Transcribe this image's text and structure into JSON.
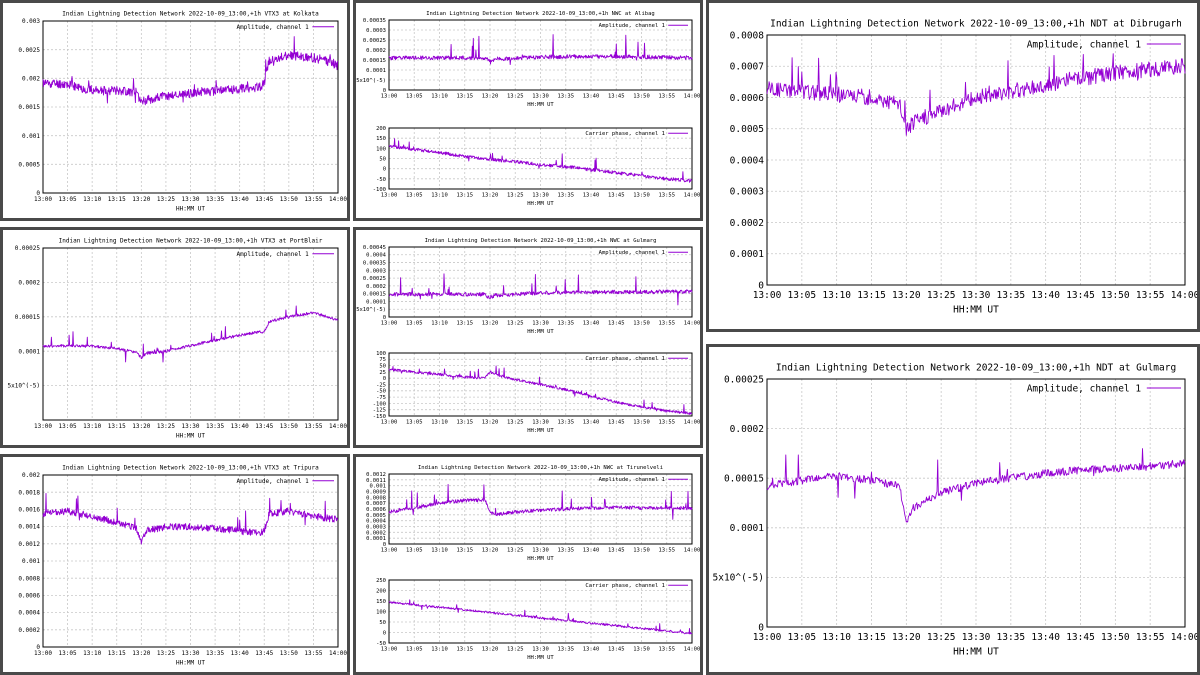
{
  "chart_data": [
    {
      "id": "p1",
      "type": "line",
      "title": "Indian Lightning Detection Network 2022-10-09_13:00,+1h VTX3 at Kolkata",
      "xlabel": "HH:MM UT",
      "xticks": [
        "13:00",
        "13:05",
        "13:10",
        "13:15",
        "13:20",
        "13:25",
        "13:30",
        "13:35",
        "13:40",
        "13:45",
        "13:50",
        "13:55",
        "14:00"
      ],
      "ylim": [
        0,
        0.003
      ],
      "yticks": [
        {
          "v": 0,
          "l": "0"
        },
        {
          "v": 0.0005,
          "l": "0.0005"
        },
        {
          "v": 0.001,
          "l": "0.001"
        },
        {
          "v": 0.0015,
          "l": "0.0015"
        },
        {
          "v": 0.002,
          "l": "0.002"
        },
        {
          "v": 0.0025,
          "l": "0.0025"
        },
        {
          "v": 0.003,
          "l": "0.003"
        }
      ],
      "legend": "Amplitude, channel 1",
      "noise": 8e-05,
      "spikes": 0.0003,
      "seed": 11,
      "series": [
        {
          "name": "Amplitude, channel 1",
          "x": [
            0,
            5,
            8,
            12,
            15,
            19,
            20,
            21,
            24,
            28,
            32,
            35,
            40,
            44,
            45,
            46,
            50,
            55,
            58,
            60
          ],
          "y": [
            0.00192,
            0.0019,
            0.00182,
            0.00178,
            0.0018,
            0.00175,
            0.0016,
            0.00162,
            0.00168,
            0.00172,
            0.00176,
            0.00178,
            0.00182,
            0.00185,
            0.0019,
            0.00232,
            0.0024,
            0.00236,
            0.0023,
            0.00222
          ]
        }
      ]
    },
    {
      "id": "p2",
      "type": "line",
      "title": "Indian Lightning Detection Network 2022-10-09_13:00,+1h NWC at Alibag",
      "xlabel": "HH:MM UT",
      "xticks": [
        "13:00",
        "13:05",
        "13:10",
        "13:15",
        "13:20",
        "13:25",
        "13:30",
        "13:35",
        "13:40",
        "13:45",
        "13:50",
        "13:55",
        "14:00"
      ],
      "ylim": [
        0,
        0.00035
      ],
      "yticks": [
        {
          "v": 0,
          "l": "0"
        },
        {
          "v": 5e-05,
          "l": "5x10^(-5)"
        },
        {
          "v": 0.0001,
          "l": "0.0001"
        },
        {
          "v": 0.00015,
          "l": "0.00015"
        },
        {
          "v": 0.0002,
          "l": "0.0002"
        },
        {
          "v": 0.00025,
          "l": "0.00025"
        },
        {
          "v": 0.0003,
          "l": "0.0003"
        },
        {
          "v": 0.00035,
          "l": "0.00035"
        }
      ],
      "legend": "Amplitude, channel 1",
      "noise": 1e-05,
      "spikes": 0.00012,
      "seed": 23,
      "series": [
        {
          "name": "Amplitude, channel 1",
          "x": [
            0,
            10,
            19,
            20,
            21,
            30,
            40,
            50,
            60
          ],
          "y": [
            0.00016,
            0.000162,
            0.00016,
            0.000145,
            0.000155,
            0.000165,
            0.000168,
            0.000165,
            0.000162
          ]
        }
      ]
    },
    {
      "id": "p3",
      "type": "line",
      "title": "",
      "xlabel": "HH:MM UT",
      "xticks": [
        "13:00",
        "13:05",
        "13:10",
        "13:15",
        "13:20",
        "13:25",
        "13:30",
        "13:35",
        "13:40",
        "13:45",
        "13:50",
        "13:55",
        "14:00"
      ],
      "ylim": [
        -100,
        200
      ],
      "yticks": [
        {
          "v": -100,
          "l": "-100"
        },
        {
          "v": -50,
          "l": "-50"
        },
        {
          "v": 0,
          "l": "0"
        },
        {
          "v": 50,
          "l": "50"
        },
        {
          "v": 100,
          "l": "100"
        },
        {
          "v": 150,
          "l": "150"
        },
        {
          "v": 200,
          "l": "200"
        }
      ],
      "legend": "Carrier phase, channel 1",
      "noise": 8,
      "spikes": 60,
      "seed": 37,
      "series": [
        {
          "name": "Carrier phase, channel 1",
          "x": [
            0,
            5,
            10,
            15,
            20,
            25,
            30,
            35,
            40,
            45,
            50,
            55,
            60
          ],
          "y": [
            110,
            95,
            80,
            60,
            45,
            35,
            20,
            10,
            -5,
            -20,
            -35,
            -50,
            -60
          ]
        }
      ]
    },
    {
      "id": "p4",
      "type": "line",
      "title": "Indian Lightning Detection Network 2022-10-09_13:00,+1h VTX3 at PortBlair",
      "xlabel": "HH:MM UT",
      "xticks": [
        "13:00",
        "13:05",
        "13:10",
        "13:15",
        "13:20",
        "13:25",
        "13:30",
        "13:35",
        "13:40",
        "13:45",
        "13:50",
        "13:55",
        "14:00"
      ],
      "ylim": [
        0,
        0.00025
      ],
      "yticks": [
        {
          "v": 0,
          "l": ""
        },
        {
          "v": 5e-05,
          "l": "5x10^(-5)"
        },
        {
          "v": 0.0001,
          "l": "0.0001"
        },
        {
          "v": 0.00015,
          "l": "0.00015"
        },
        {
          "v": 0.0002,
          "l": "0.0002"
        },
        {
          "v": 0.00025,
          "l": "0.00025"
        }
      ],
      "legend": "Amplitude, channel 1",
      "noise": 2e-06,
      "spikes": 3e-05,
      "seed": 41,
      "series": [
        {
          "name": "Amplitude, channel 1",
          "x": [
            0,
            5,
            10,
            15,
            19,
            20,
            21,
            25,
            30,
            35,
            40,
            44,
            45,
            46,
            50,
            55,
            60
          ],
          "y": [
            0.000107,
            0.000108,
            0.000107,
            0.000104,
            9.8e-05,
            9e-05,
            9.7e-05,
            0.0001,
            0.000108,
            0.000116,
            0.000123,
            0.000128,
            0.000128,
            0.000143,
            0.00015,
            0.000156,
            0.000145
          ]
        }
      ]
    },
    {
      "id": "p5",
      "type": "line",
      "title": "Indian Lightning Detection Network 2022-10-09_13:00,+1h NWC at Gulmarg",
      "xlabel": "HH:MM UT",
      "xticks": [
        "13:00",
        "13:05",
        "13:10",
        "13:15",
        "13:20",
        "13:25",
        "13:30",
        "13:35",
        "13:40",
        "13:45",
        "13:50",
        "13:55",
        "14:00"
      ],
      "ylim": [
        0,
        0.00045
      ],
      "yticks": [
        {
          "v": 0,
          "l": "0"
        },
        {
          "v": 5e-05,
          "l": "5x10^(-5)"
        },
        {
          "v": 0.0001,
          "l": "0.0001"
        },
        {
          "v": 0.00015,
          "l": "0.00015"
        },
        {
          "v": 0.0002,
          "l": "0.0002"
        },
        {
          "v": 0.00025,
          "l": "0.00025"
        },
        {
          "v": 0.0003,
          "l": "0.0003"
        },
        {
          "v": 0.00035,
          "l": "0.00035"
        },
        {
          "v": 0.0004,
          "l": "0.0004"
        },
        {
          "v": 0.00045,
          "l": "0.00045"
        }
      ],
      "legend": "Amplitude, channel 1",
      "noise": 1.2e-05,
      "spikes": 0.00015,
      "seed": 53,
      "series": [
        {
          "name": "Amplitude, channel 1",
          "x": [
            0,
            10,
            19,
            20,
            21,
            30,
            40,
            50,
            60
          ],
          "y": [
            0.000145,
            0.000147,
            0.000145,
            0.00012,
            0.00014,
            0.000155,
            0.00016,
            0.000162,
            0.000165
          ]
        }
      ]
    },
    {
      "id": "p6",
      "type": "line",
      "title": "",
      "xlabel": "HH:MM UT",
      "xticks": [
        "13:00",
        "13:05",
        "13:10",
        "13:15",
        "13:20",
        "13:25",
        "13:30",
        "13:35",
        "13:40",
        "13:45",
        "13:50",
        "13:55",
        "14:00"
      ],
      "ylim": [
        -150,
        100
      ],
      "yticks": [
        {
          "v": -150,
          "l": "-150"
        },
        {
          "v": -125,
          "l": "-125"
        },
        {
          "v": -100,
          "l": "-100"
        },
        {
          "v": -75,
          "l": "-75"
        },
        {
          "v": -50,
          "l": "-50"
        },
        {
          "v": -25,
          "l": "-25"
        },
        {
          "v": 0,
          "l": "0"
        },
        {
          "v": 25,
          "l": "25"
        },
        {
          "v": 50,
          "l": "50"
        },
        {
          "v": 75,
          "l": "75"
        },
        {
          "v": 100,
          "l": "100"
        }
      ],
      "legend": "Carrier phase, channel 1",
      "noise": 5,
      "spikes": 35,
      "seed": 67,
      "series": [
        {
          "name": "Carrier phase, channel 1",
          "x": [
            0,
            5,
            10,
            15,
            19,
            20,
            21,
            25,
            30,
            35,
            40,
            45,
            50,
            55,
            60
          ],
          "y": [
            35,
            25,
            15,
            5,
            0,
            25,
            15,
            -5,
            -25,
            -45,
            -70,
            -95,
            -115,
            -130,
            -140
          ]
        }
      ]
    },
    {
      "id": "p7",
      "type": "line",
      "title": "Indian Lightning Detection Network 2022-10-09_13:00,+1h VTX3 at Tripura",
      "xlabel": "HH:MM UT",
      "xticks": [
        "13:00",
        "13:05",
        "13:10",
        "13:15",
        "13:20",
        "13:25",
        "13:30",
        "13:35",
        "13:40",
        "13:45",
        "13:50",
        "13:55",
        "14:00"
      ],
      "ylim": [
        0,
        0.002
      ],
      "yticks": [
        {
          "v": 0,
          "l": "0"
        },
        {
          "v": 0.0002,
          "l": "0.0002"
        },
        {
          "v": 0.0004,
          "l": "0.0004"
        },
        {
          "v": 0.0006,
          "l": "0.0006"
        },
        {
          "v": 0.0008,
          "l": "0.0008"
        },
        {
          "v": 0.001,
          "l": "0.001"
        },
        {
          "v": 0.0012,
          "l": "0.0012"
        },
        {
          "v": 0.0014,
          "l": "0.0014"
        },
        {
          "v": 0.0016,
          "l": "0.0016"
        },
        {
          "v": 0.0018,
          "l": "0.0018"
        },
        {
          "v": 0.002,
          "l": "0.002"
        }
      ],
      "legend": "Amplitude, channel 1",
      "noise": 4e-05,
      "spikes": 0.00022,
      "seed": 71,
      "series": [
        {
          "name": "Amplitude, channel 1",
          "x": [
            0,
            5,
            10,
            15,
            19,
            20,
            21,
            25,
            30,
            35,
            40,
            44,
            45,
            46,
            50,
            55,
            60
          ],
          "y": [
            0.00155,
            0.00158,
            0.00152,
            0.00145,
            0.00138,
            0.00122,
            0.00135,
            0.0014,
            0.0014,
            0.00138,
            0.00135,
            0.00132,
            0.00135,
            0.00155,
            0.00158,
            0.00152,
            0.00148
          ]
        }
      ]
    },
    {
      "id": "p8",
      "type": "line",
      "title": "Indian Lightning Detection Network 2022-10-09_13:00,+1h NWC at Tirunelveli",
      "xlabel": "HH:MM UT",
      "xticks": [
        "13:00",
        "13:05",
        "13:10",
        "13:15",
        "13:20",
        "13:25",
        "13:30",
        "13:35",
        "13:40",
        "13:45",
        "13:50",
        "13:55",
        "14:00"
      ],
      "ylim": [
        0,
        0.0012
      ],
      "yticks": [
        {
          "v": 0,
          "l": "0"
        },
        {
          "v": 0.0001,
          "l": "0.0001"
        },
        {
          "v": 0.0002,
          "l": "0.0002"
        },
        {
          "v": 0.0003,
          "l": "0.0003"
        },
        {
          "v": 0.0004,
          "l": "0.0004"
        },
        {
          "v": 0.0005,
          "l": "0.0005"
        },
        {
          "v": 0.0006,
          "l": "0.0006"
        },
        {
          "v": 0.0007,
          "l": "0.0007"
        },
        {
          "v": 0.0008,
          "l": "0.0008"
        },
        {
          "v": 0.0009,
          "l": "0.0009"
        },
        {
          "v": 0.001,
          "l": "0.001"
        },
        {
          "v": 0.0011,
          "l": "0.0011"
        },
        {
          "v": 0.0012,
          "l": "0.0012"
        }
      ],
      "legend": "Amplitude, channel 1",
      "noise": 3e-05,
      "spikes": 0.0003,
      "seed": 83,
      "series": [
        {
          "name": "Amplitude, channel 1",
          "x": [
            0,
            5,
            10,
            15,
            19,
            20,
            21,
            25,
            30,
            35,
            40,
            45,
            50,
            55,
            60
          ],
          "y": [
            0.00055,
            0.00062,
            0.0007,
            0.00075,
            0.00075,
            0.00055,
            0.0005,
            0.00055,
            0.00058,
            0.0006,
            0.00062,
            0.00063,
            0.00062,
            0.00062,
            0.00061
          ]
        }
      ]
    },
    {
      "id": "p9",
      "type": "line",
      "title": "",
      "xlabel": "HH:MM UT",
      "xticks": [
        "13:00",
        "13:05",
        "13:10",
        "13:15",
        "13:20",
        "13:25",
        "13:30",
        "13:35",
        "13:40",
        "13:45",
        "13:50",
        "13:55",
        "14:00"
      ],
      "ylim": [
        -50,
        250
      ],
      "yticks": [
        {
          "v": -50,
          "l": "-50"
        },
        {
          "v": 0,
          "l": "0"
        },
        {
          "v": 50,
          "l": "50"
        },
        {
          "v": 100,
          "l": "100"
        },
        {
          "v": 150,
          "l": "150"
        },
        {
          "v": 200,
          "l": "200"
        },
        {
          "v": 250,
          "l": "250"
        }
      ],
      "legend": "Carrier phase, channel 1",
      "noise": 5,
      "spikes": 40,
      "seed": 97,
      "series": [
        {
          "name": "Carrier phase, channel 1",
          "x": [
            0,
            10,
            20,
            30,
            40,
            50,
            60
          ],
          "y": [
            145,
            120,
            95,
            70,
            45,
            20,
            -5
          ]
        }
      ]
    },
    {
      "id": "p10",
      "type": "line",
      "title": "Indian Lightning Detection Network 2022-10-09_13:00,+1h NDT at Dibrugarh",
      "xlabel": "HH:MM UT",
      "xticks": [
        "13:00",
        "13:05",
        "13:10",
        "13:15",
        "13:20",
        "13:25",
        "13:30",
        "13:35",
        "13:40",
        "13:45",
        "13:50",
        "13:55",
        "14:00"
      ],
      "ylim": [
        0,
        0.0008
      ],
      "yticks": [
        {
          "v": 0,
          "l": "0"
        },
        {
          "v": 0.0001,
          "l": "0.0001"
        },
        {
          "v": 0.0002,
          "l": "0.0002"
        },
        {
          "v": 0.0003,
          "l": "0.0003"
        },
        {
          "v": 0.0004,
          "l": "0.0004"
        },
        {
          "v": 0.0005,
          "l": "0.0005"
        },
        {
          "v": 0.0006,
          "l": "0.0006"
        },
        {
          "v": 0.0007,
          "l": "0.0007"
        },
        {
          "v": 0.0008,
          "l": "0.0008"
        }
      ],
      "legend": "Amplitude, channel 1",
      "noise": 2.5e-05,
      "spikes": 0.0001,
      "seed": 101,
      "series": [
        {
          "name": "Amplitude, channel 1",
          "x": [
            0,
            5,
            10,
            15,
            19,
            20,
            21,
            25,
            30,
            35,
            40,
            45,
            50,
            55,
            60
          ],
          "y": [
            0.00063,
            0.00062,
            0.00061,
            0.0006,
            0.00058,
            0.0005,
            0.00052,
            0.00056,
            0.0006,
            0.00062,
            0.00064,
            0.00066,
            0.00068,
            0.00069,
            0.0007
          ]
        }
      ]
    },
    {
      "id": "p11",
      "type": "line",
      "title": "Indian Lightning Detection Network 2022-10-09_13:00,+1h NDT at Gulmarg",
      "xlabel": "HH:MM UT",
      "xticks": [
        "13:00",
        "13:05",
        "13:10",
        "13:15",
        "13:20",
        "13:25",
        "13:30",
        "13:35",
        "13:40",
        "13:45",
        "13:50",
        "13:55",
        "14:00"
      ],
      "ylim": [
        0,
        0.00025
      ],
      "yticks": [
        {
          "v": 0,
          "l": "0"
        },
        {
          "v": 5e-05,
          "l": "5x10^(-5)"
        },
        {
          "v": 0.0001,
          "l": "0.0001"
        },
        {
          "v": 0.00015,
          "l": "0.00015"
        },
        {
          "v": 0.0002,
          "l": "0.0002"
        },
        {
          "v": 0.00025,
          "l": "0.00025"
        }
      ],
      "legend": "Amplitude, channel 1",
      "noise": 4e-06,
      "spikes": 3.5e-05,
      "seed": 113,
      "series": [
        {
          "name": "Amplitude, channel 1",
          "x": [
            0,
            5,
            10,
            15,
            19,
            20,
            21,
            25,
            30,
            35,
            40,
            45,
            50,
            55,
            60
          ],
          "y": [
            0.000142,
            0.000148,
            0.000152,
            0.000148,
            0.000142,
            0.000105,
            0.00012,
            0.000135,
            0.000145,
            0.00015,
            0.000155,
            0.000158,
            0.00016,
            0.000162,
            0.000165
          ]
        }
      ]
    }
  ]
}
